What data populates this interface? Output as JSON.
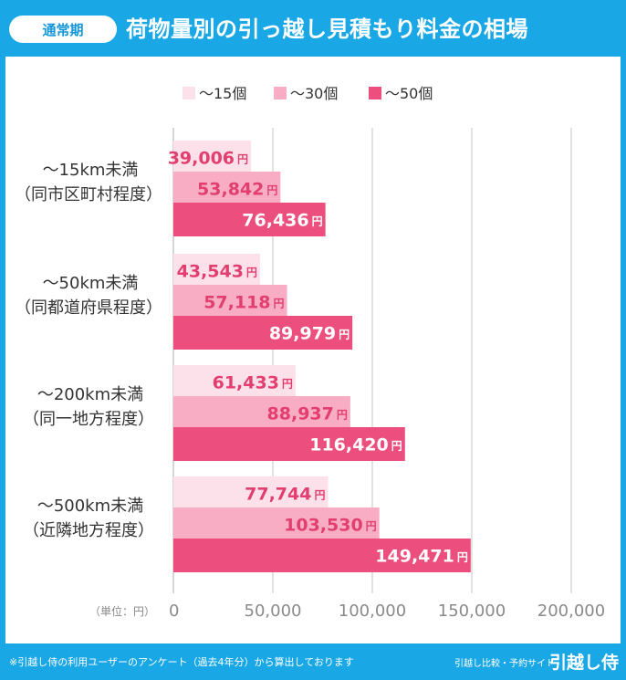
{
  "header": {
    "badge": "通常期",
    "title": "荷物量別の引っ越し見積もり料金の相場"
  },
  "footer": {
    "note": "※引越し侍の利用ユーザーのアンケート（過去4年分）から算出しております",
    "brand_tagline": "引越し比較・予約サイト",
    "brand_name": "引越し侍"
  },
  "colors": {
    "frame": "#19a7e6",
    "series_15": "#fde1ea",
    "series_30": "#f8adc4",
    "series_50": "#ec4f7e",
    "value_label": "#e23e70"
  },
  "chart_data": {
    "type": "bar",
    "orientation": "horizontal",
    "categories": [
      [
        "〜15km未満",
        "（同市区町村程度）"
      ],
      [
        "〜50km未満",
        "（同都道府県程度）"
      ],
      [
        "〜200km未満",
        "（同一地方程度）"
      ],
      [
        "〜500km未満",
        "（近隣地方程度）"
      ]
    ],
    "series": [
      {
        "name": "〜15個",
        "values": [
          39006,
          43543,
          61433,
          77744
        ],
        "labels": [
          "39,006",
          "43,543",
          "61,433",
          "77,744"
        ]
      },
      {
        "name": "〜30個",
        "values": [
          53842,
          57118,
          88937,
          103530
        ],
        "labels": [
          "53,842",
          "57,118",
          "88,937",
          "103,530"
        ]
      },
      {
        "name": "〜50個",
        "values": [
          76436,
          89979,
          116420,
          149471
        ],
        "labels": [
          "76,436",
          "89,979",
          "116,420",
          "149,471"
        ]
      }
    ],
    "value_suffix": "円",
    "x_ticks": [
      0,
      50000,
      100000,
      150000,
      200000
    ],
    "x_tick_labels": [
      "0",
      "50,000",
      "100,000",
      "150,000",
      "200,000"
    ],
    "xlim": [
      0,
      200000
    ],
    "unit_label": "（単位：円）",
    "legend_position": "top",
    "grid": true
  }
}
